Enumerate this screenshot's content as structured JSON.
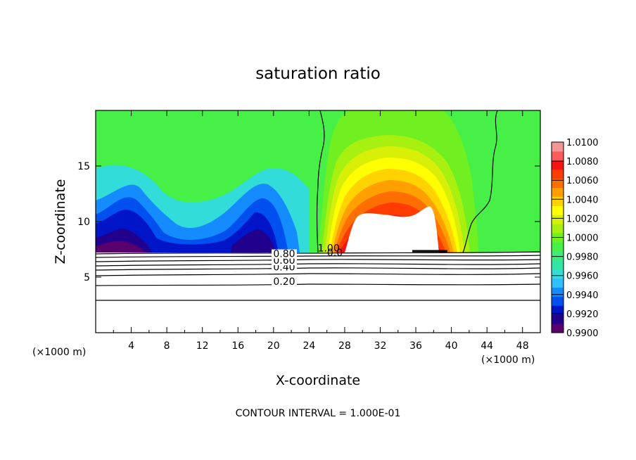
{
  "chart_data": {
    "type": "heatmap",
    "title": "saturation ratio",
    "xlabel": "X-coordinate",
    "ylabel": "Z-coordinate",
    "x_unit": "(×1000 m)",
    "y_unit": "(×1000 m)",
    "xlim": [
      0,
      50
    ],
    "ylim": [
      0,
      20
    ],
    "x_ticks": [
      4,
      8,
      12,
      16,
      20,
      24,
      28,
      32,
      36,
      40,
      44,
      48
    ],
    "y_ticks": [
      5,
      10,
      15
    ],
    "footnote": "CONTOUR INTERVAL = 1.000E-01",
    "colorbar": {
      "min": 0.99,
      "max": 1.01,
      "step": 0.001,
      "labels": [
        "1.0100",
        "1.0080",
        "1.0060",
        "1.0040",
        "1.0020",
        "1.0000",
        "0.9980",
        "0.9960",
        "0.9940",
        "0.9920",
        "0.9900"
      ],
      "colors": [
        "#5a006e",
        "#20008c",
        "#0014c8",
        "#0050f0",
        "#148cff",
        "#30c0ff",
        "#32dcd8",
        "#32e6a8",
        "#3cec78",
        "#46f046",
        "#70f020",
        "#a8f010",
        "#d8f008",
        "#ffff00",
        "#ffd200",
        "#ffa000",
        "#ff6e00",
        "#ff3c00",
        "#f51414",
        "#ff5a5a",
        "#f59696"
      ]
    },
    "contour_labels": [
      {
        "text": "0.20",
        "x": 21.2,
        "z": 4.3
      },
      {
        "text": "0.40",
        "x": 21.2,
        "z": 5.6
      },
      {
        "text": "0.60",
        "x": 21.2,
        "z": 6.2
      },
      {
        "text": "0.80",
        "x": 21.2,
        "z": 6.8
      },
      {
        "text": "1.00",
        "x": 26.2,
        "z": 7.3
      },
      {
        "text": "0.0",
        "x": 26.9,
        "z": 6.9
      }
    ]
  }
}
